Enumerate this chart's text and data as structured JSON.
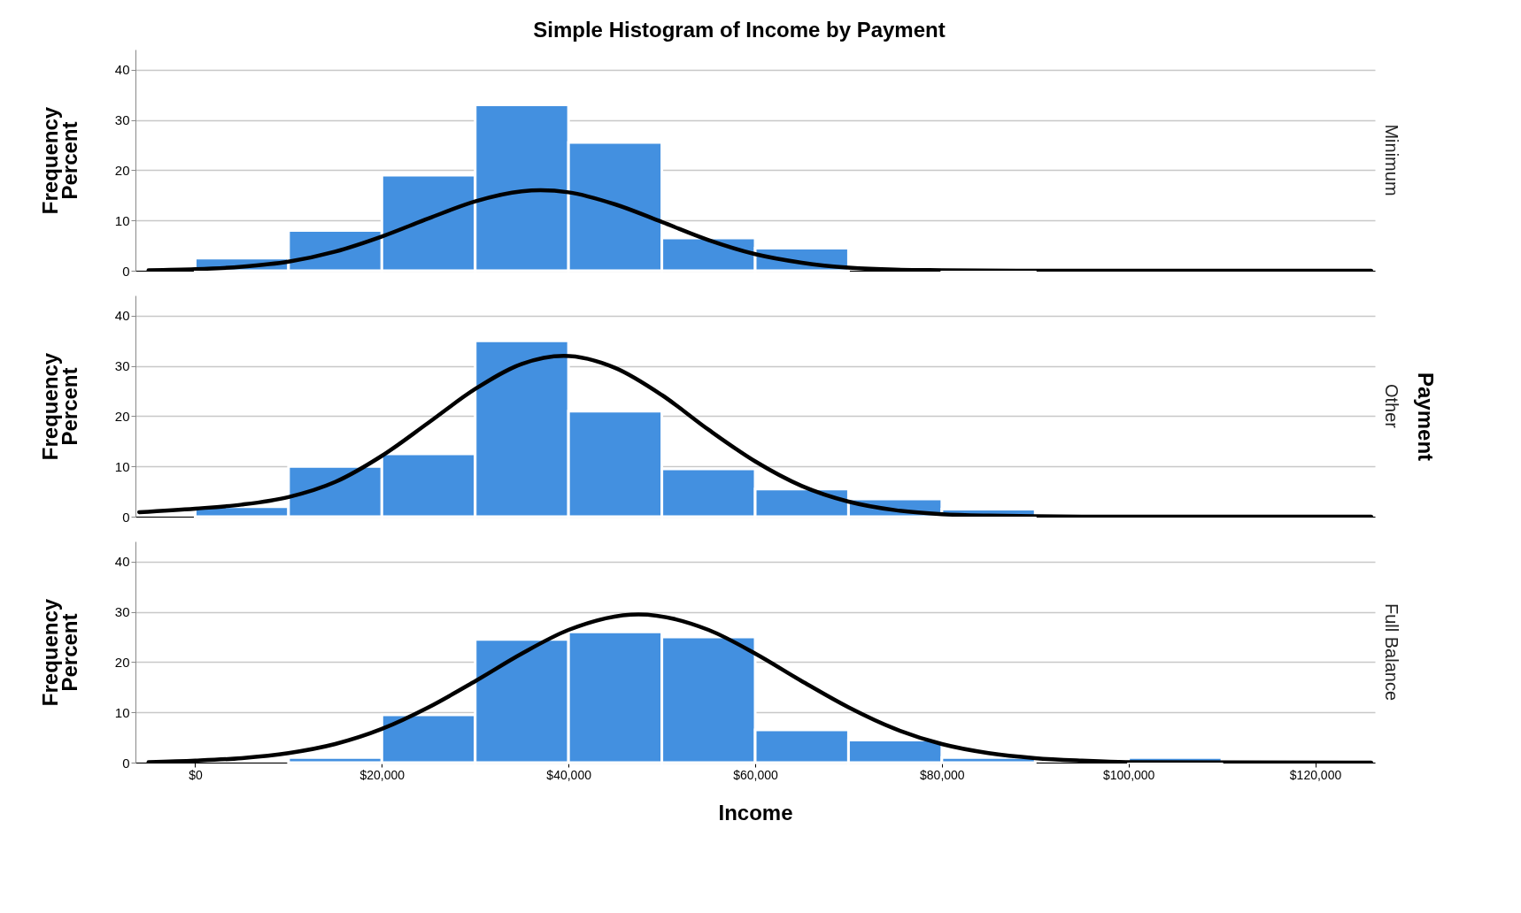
{
  "chart_data": [
    {
      "type": "histogram",
      "title": "Simple Histogram of Income by Payment",
      "ylabel": "Frequency\nPercent",
      "y2label": "Minimum",
      "color": "#4390e0",
      "bins": [
        0,
        10000,
        20000,
        30000,
        40000,
        50000,
        60000,
        70000,
        80000,
        90000
      ],
      "values": [
        2.5,
        8,
        19,
        33,
        25.5,
        6.5,
        4.5,
        0,
        0.5
      ],
      "series": [
        {
          "type": "line",
          "color": "#000000",
          "x": [
            -5000,
            0,
            5000,
            10000,
            15000,
            20000,
            25000,
            30000,
            35000,
            37000,
            40000,
            45000,
            50000,
            55000,
            60000,
            65000,
            70000,
            75000,
            80000,
            90000,
            100000,
            126000
          ],
          "values": [
            0.1,
            0.3,
            0.8,
            1.8,
            3.8,
            6.8,
            10.4,
            13.8,
            15.8,
            16,
            15.6,
            13.2,
            9.7,
            6.1,
            3.3,
            1.6,
            0.6,
            0.2,
            0.1,
            0,
            0,
            0
          ]
        }
      ],
      "xlim": [
        -6400,
        126400
      ],
      "ylim": [
        0,
        44
      ],
      "yticks": [
        0,
        10,
        20,
        30,
        40
      ],
      "grid": "y",
      "tick_labels": "y"
    },
    {
      "type": "histogram",
      "ylabel": "Frequency\nPercent",
      "y2label": "Other",
      "color": "#4390e0",
      "annotations": [
        "Payment"
      ],
      "bins": [
        0,
        10000,
        20000,
        30000,
        40000,
        50000,
        60000,
        70000,
        80000,
        90000
      ],
      "values": [
        2,
        10,
        12.5,
        35,
        21,
        9.5,
        5.5,
        3.5,
        1.5
      ],
      "series": [
        {
          "type": "line",
          "color": "#000000",
          "x": [
            -6000,
            0,
            5000,
            10000,
            15000,
            20000,
            25000,
            30000,
            35000,
            39500,
            45000,
            50000,
            55000,
            60000,
            65000,
            70000,
            75000,
            80000,
            85000,
            95000,
            126000
          ],
          "values": [
            0.9,
            1.6,
            2.4,
            3.9,
            6.9,
            12.1,
            18.7,
            25.4,
            30.4,
            32,
            29.6,
            24.2,
            17.3,
            11,
            6.1,
            3,
            1.3,
            0.5,
            0.2,
            0,
            0
          ]
        }
      ],
      "xlim": [
        -6400,
        126400
      ],
      "ylim": [
        0,
        44
      ],
      "yticks": [
        0,
        10,
        20,
        30,
        40
      ],
      "grid": "y",
      "tick_labels": "y"
    },
    {
      "type": "histogram",
      "ylabel": "Frequency\nPercent",
      "y2label": "Full Balance",
      "xlabel": "Income",
      "color": "#4390e0",
      "bins": [
        0,
        10000,
        20000,
        30000,
        40000,
        50000,
        60000,
        70000,
        80000,
        90000,
        100000,
        110000
      ],
      "values": [
        0,
        1,
        9.5,
        24.5,
        26,
        25,
        6.5,
        4.5,
        1,
        0,
        1
      ],
      "series": [
        {
          "type": "line",
          "color": "#000000",
          "x": [
            -5000,
            0,
            5000,
            10000,
            15000,
            20000,
            25000,
            30000,
            35000,
            40000,
            47500,
            55000,
            60000,
            65000,
            70000,
            75000,
            80000,
            85000,
            90000,
            95000,
            100000,
            126000
          ],
          "values": [
            0.1,
            0.4,
            0.9,
            1.9,
            3.7,
            6.7,
            11,
            16.2,
            21.7,
            26.4,
            29.5,
            26.4,
            21.7,
            16.2,
            11,
            6.7,
            3.7,
            1.9,
            0.9,
            0.4,
            0.1,
            0
          ]
        }
      ],
      "xlim": [
        -6400,
        126400
      ],
      "ylim": [
        0,
        44
      ],
      "yticks": [
        0,
        10,
        20,
        30,
        40
      ],
      "grid": "y",
      "xticks": [
        {
          "value": 0,
          "label": "$0"
        },
        {
          "value": 20000,
          "label": "$20,000"
        },
        {
          "value": 40000,
          "label": "$40,000"
        },
        {
          "value": 60000,
          "label": "$60,000"
        },
        {
          "value": 80000,
          "label": "$80,000"
        },
        {
          "value": 100000,
          "label": "$100,000"
        },
        {
          "value": 120000,
          "label": "$120,000"
        }
      ]
    }
  ]
}
